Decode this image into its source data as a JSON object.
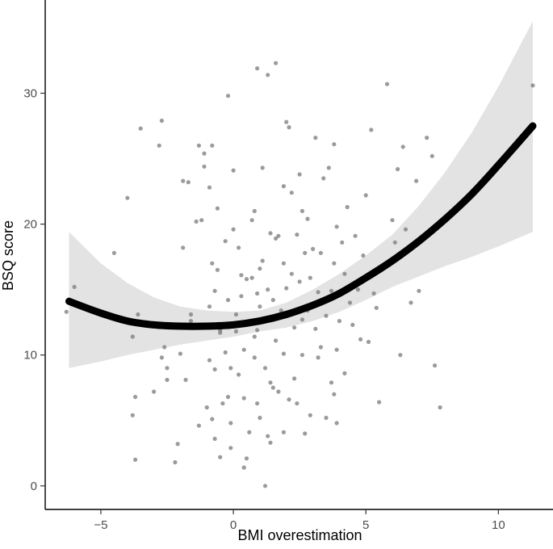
{
  "chart_data": {
    "type": "scatter",
    "title": "",
    "xlabel": "BMI overestimation",
    "ylabel": "BSQ score",
    "xlim": [
      -7.1,
      12.0
    ],
    "ylim": [
      -1.8,
      37.0
    ],
    "x_ticks": [
      -5,
      0,
      5,
      10
    ],
    "y_ticks": [
      0,
      10,
      20,
      30
    ],
    "grid": false,
    "legend": "none",
    "colors": {
      "points": "#7a7a7a",
      "fit_line": "#000000",
      "ribbon": "#e3e3e3",
      "axis": "#000000",
      "tick_label": "#4d4d4d"
    },
    "fit": {
      "method": "quadratic (loess-like) smooth with confidence band",
      "x": [
        -6.2,
        -5,
        -4,
        -3,
        -2,
        -1,
        0,
        1,
        2,
        3,
        4,
        5,
        6,
        7,
        8,
        9,
        10,
        11.3
      ],
      "y": [
        14.1,
        13.2,
        12.6,
        12.3,
        12.2,
        12.2,
        12.3,
        12.6,
        13.1,
        13.8,
        14.7,
        15.9,
        17.2,
        18.7,
        20.4,
        22.3,
        24.5,
        27.5
      ],
      "lower": [
        9.0,
        9.5,
        10.0,
        10.4,
        10.8,
        11.1,
        11.4,
        11.8,
        12.1,
        12.6,
        13.3,
        14.2,
        15.2,
        16.0,
        16.8,
        17.5,
        18.3,
        19.4
      ],
      "upper": [
        19.4,
        17.0,
        15.5,
        14.4,
        13.7,
        13.4,
        13.3,
        13.4,
        14.0,
        15.0,
        16.2,
        17.6,
        19.2,
        21.4,
        24.0,
        27.0,
        30.5,
        35.5
      ]
    },
    "points": [
      [
        -6.3,
        13.3
      ],
      [
        -6.0,
        15.2
      ],
      [
        -4.5,
        17.8
      ],
      [
        -4.0,
        22.0
      ],
      [
        -3.8,
        11.4
      ],
      [
        -3.6,
        13.1
      ],
      [
        -3.5,
        27.3
      ],
      [
        -3.8,
        5.4
      ],
      [
        -3.7,
        6.8
      ],
      [
        -3.7,
        2.0
      ],
      [
        -3.0,
        7.2
      ],
      [
        -2.8,
        26.0
      ],
      [
        -2.7,
        27.9
      ],
      [
        -2.7,
        9.8
      ],
      [
        -2.5,
        8.1
      ],
      [
        -2.6,
        10.6
      ],
      [
        -2.5,
        9.0
      ],
      [
        -2.2,
        1.8
      ],
      [
        -2.1,
        3.2
      ],
      [
        -1.9,
        23.3
      ],
      [
        -1.9,
        18.2
      ],
      [
        -1.8,
        8.1
      ],
      [
        -1.7,
        23.2
      ],
      [
        -1.6,
        12.6
      ],
      [
        -1.6,
        13.1
      ],
      [
        -1.5,
        12.2
      ],
      [
        -1.4,
        20.2
      ],
      [
        -1.3,
        26.0
      ],
      [
        -1.2,
        20.3
      ],
      [
        -1.1,
        24.4
      ],
      [
        -1.1,
        25.4
      ],
      [
        -1.0,
        6.0
      ],
      [
        -0.9,
        22.8
      ],
      [
        -0.9,
        13.7
      ],
      [
        -0.9,
        9.6
      ],
      [
        -0.8,
        5.1
      ],
      [
        -0.8,
        26.0
      ],
      [
        -0.8,
        17.0
      ],
      [
        -0.7,
        14.9
      ],
      [
        -0.6,
        16.5
      ],
      [
        -0.7,
        8.9
      ],
      [
        -0.7,
        3.6
      ],
      [
        -0.6,
        21.2
      ],
      [
        -0.5,
        11.9
      ],
      [
        -0.5,
        2.2
      ],
      [
        -0.5,
        11.7
      ],
      [
        -0.4,
        6.3
      ],
      [
        -0.3,
        18.7
      ],
      [
        -0.3,
        10.2
      ],
      [
        -0.2,
        14.2
      ],
      [
        -0.2,
        6.8
      ],
      [
        -0.1,
        9.0
      ],
      [
        -0.1,
        2.9
      ],
      [
        -0.2,
        29.8
      ],
      [
        0.0,
        24.1
      ],
      [
        0.0,
        19.6
      ],
      [
        0.1,
        13.1
      ],
      [
        0.1,
        11.8
      ],
      [
        0.2,
        8.5
      ],
      [
        0.3,
        14.5
      ],
      [
        0.2,
        18.2
      ],
      [
        0.3,
        16.1
      ],
      [
        0.4,
        10.4
      ],
      [
        0.4,
        6.7
      ],
      [
        0.5,
        2.1
      ],
      [
        0.5,
        15.8
      ],
      [
        0.6,
        12.5
      ],
      [
        0.6,
        4.1
      ],
      [
        0.7,
        15.9
      ],
      [
        0.7,
        20.3
      ],
      [
        0.8,
        21.0
      ],
      [
        0.8,
        11.4
      ],
      [
        0.8,
        9.8
      ],
      [
        0.9,
        31.9
      ],
      [
        0.9,
        14.7
      ],
      [
        0.9,
        6.3
      ],
      [
        1.0,
        16.6
      ],
      [
        1.0,
        13.7
      ],
      [
        1.0,
        5.2
      ],
      [
        1.1,
        24.3
      ],
      [
        1.1,
        17.2
      ],
      [
        1.2,
        12.7
      ],
      [
        1.2,
        9.0
      ],
      [
        1.3,
        31.4
      ],
      [
        1.3,
        15.0
      ],
      [
        1.3,
        3.8
      ],
      [
        1.4,
        19.3
      ],
      [
        1.4,
        7.9
      ],
      [
        1.5,
        14.2
      ],
      [
        1.6,
        18.9
      ],
      [
        1.6,
        32.3
      ],
      [
        1.6,
        11.1
      ],
      [
        1.7,
        19.1
      ],
      [
        1.7,
        7.2
      ],
      [
        1.8,
        13.4
      ],
      [
        1.9,
        22.9
      ],
      [
        1.9,
        17.0
      ],
      [
        1.9,
        10.1
      ],
      [
        1.9,
        4.1
      ],
      [
        2.0,
        27.8
      ],
      [
        2.0,
        15.1
      ],
      [
        2.1,
        27.4
      ],
      [
        2.2,
        22.4
      ],
      [
        2.2,
        16.2
      ],
      [
        2.3,
        12.1
      ],
      [
        2.3,
        8.2
      ],
      [
        2.4,
        19.2
      ],
      [
        2.4,
        6.3
      ],
      [
        2.5,
        23.8
      ],
      [
        2.5,
        15.6
      ],
      [
        2.6,
        21.0
      ],
      [
        2.6,
        10.0
      ],
      [
        2.7,
        17.8
      ],
      [
        2.8,
        13.4
      ],
      [
        2.8,
        20.4
      ],
      [
        2.9,
        15.9
      ],
      [
        2.9,
        5.4
      ],
      [
        3.0,
        18.1
      ],
      [
        3.1,
        12.0
      ],
      [
        3.1,
        26.6
      ],
      [
        3.2,
        14.8
      ],
      [
        3.2,
        9.8
      ],
      [
        3.3,
        17.8
      ],
      [
        3.4,
        23.5
      ],
      [
        3.5,
        13.0
      ],
      [
        3.5,
        5.2
      ],
      [
        3.6,
        24.3
      ],
      [
        3.7,
        14.9
      ],
      [
        3.7,
        7.9
      ],
      [
        3.8,
        26.1
      ],
      [
        3.8,
        17.0
      ],
      [
        3.9,
        19.8
      ],
      [
        3.9,
        10.4
      ],
      [
        4.0,
        12.6
      ],
      [
        4.1,
        18.6
      ],
      [
        4.2,
        16.2
      ],
      [
        4.2,
        8.6
      ],
      [
        4.3,
        21.3
      ],
      [
        4.4,
        14.0
      ],
      [
        4.5,
        12.3
      ],
      [
        4.6,
        19.1
      ],
      [
        4.7,
        15.0
      ],
      [
        4.8,
        11.2
      ],
      [
        4.9,
        17.6
      ],
      [
        5.0,
        22.2
      ],
      [
        5.1,
        11.0
      ],
      [
        5.2,
        27.2
      ],
      [
        5.3,
        14.7
      ],
      [
        5.4,
        13.6
      ],
      [
        5.5,
        6.4
      ],
      [
        5.6,
        16.5
      ],
      [
        5.8,
        30.7
      ],
      [
        6.0,
        20.3
      ],
      [
        6.1,
        18.6
      ],
      [
        6.2,
        24.2
      ],
      [
        6.3,
        10.0
      ],
      [
        6.4,
        25.9
      ],
      [
        6.5,
        19.6
      ],
      [
        6.7,
        14.0
      ],
      [
        6.9,
        23.3
      ],
      [
        7.0,
        14.9
      ],
      [
        7.3,
        26.6
      ],
      [
        7.5,
        25.2
      ],
      [
        7.6,
        9.2
      ],
      [
        7.8,
        6.0
      ],
      [
        11.3,
        30.6
      ],
      [
        3.8,
        7.0
      ],
      [
        1.4,
        3.3
      ],
      [
        2.1,
        6.6
      ],
      [
        -0.1,
        4.8
      ],
      [
        0.9,
        11.9
      ],
      [
        1.5,
        7.5
      ],
      [
        2.7,
        4.0
      ],
      [
        3.3,
        10.6
      ],
      [
        -1.3,
        4.6
      ],
      [
        0.4,
        1.4
      ],
      [
        1.2,
        0.0
      ],
      [
        2.6,
        12.7
      ],
      [
        3.9,
        4.8
      ],
      [
        -2.0,
        10.1
      ]
    ]
  }
}
